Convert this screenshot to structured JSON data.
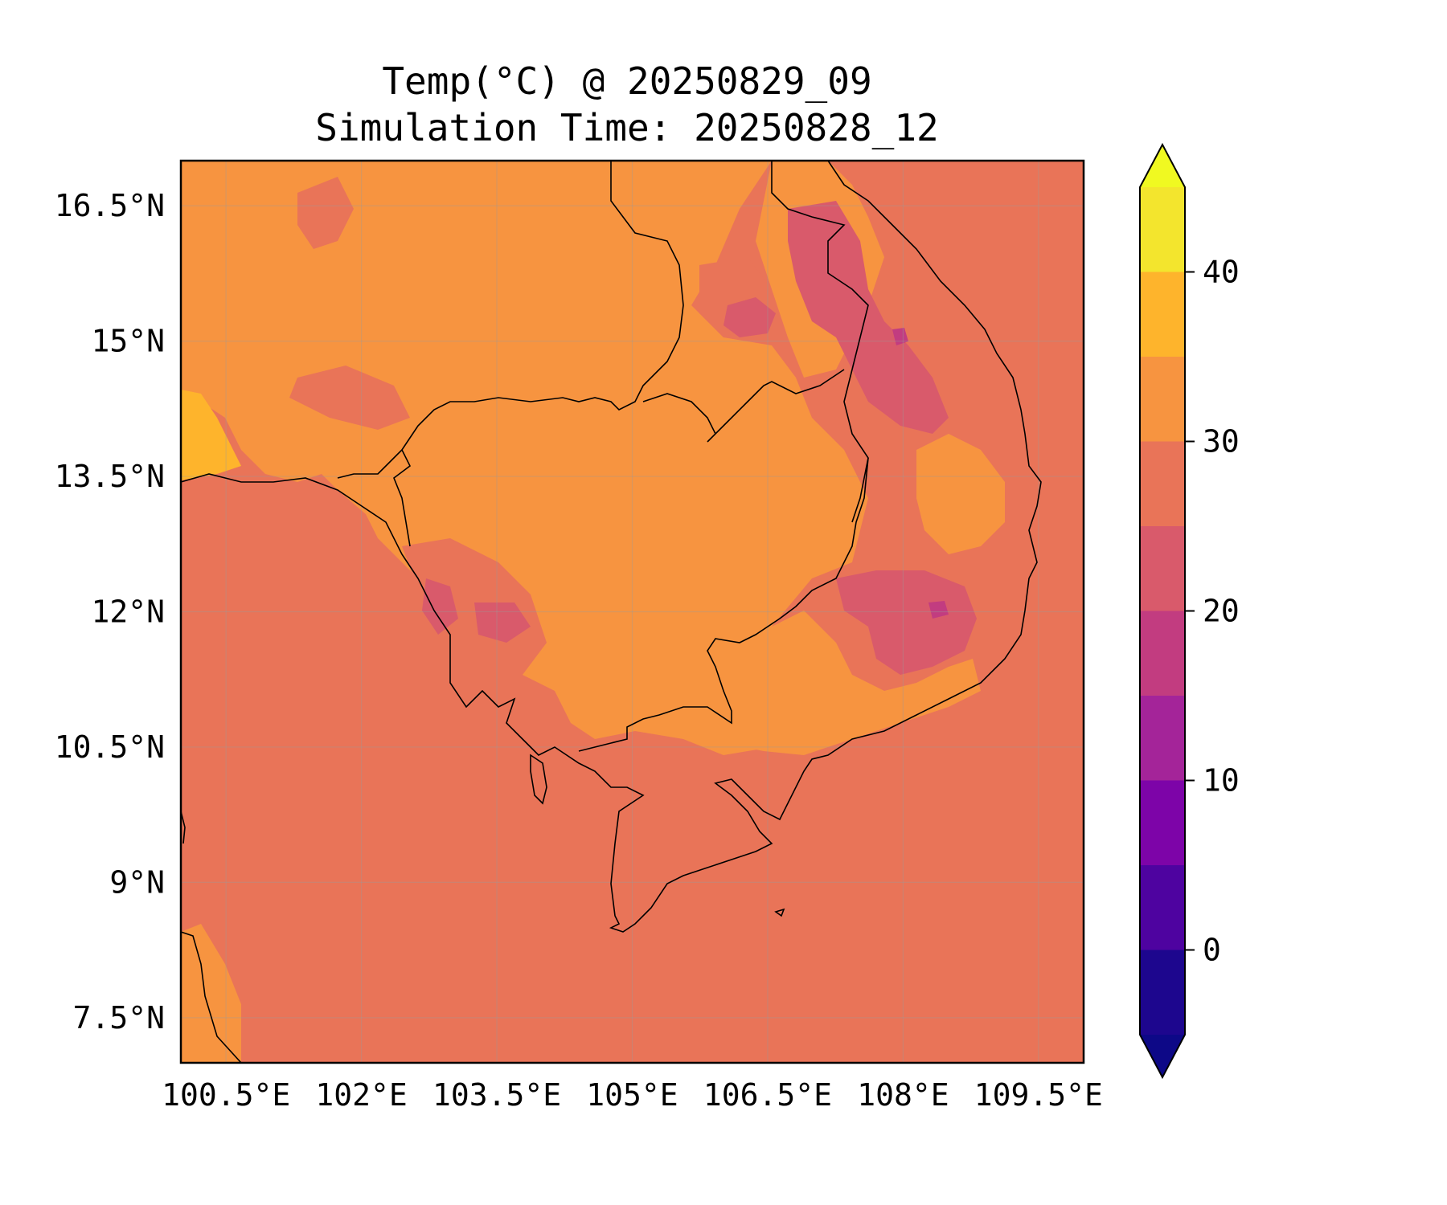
{
  "title": {
    "line1": "Temp(°C) @ 20250829_09",
    "line2": "Simulation Time: 20250828_12"
  },
  "map": {
    "lon_range": [
      100.0,
      110.0
    ],
    "lat_range": [
      7.0,
      17.0
    ],
    "background_color": "#e97458",
    "gridlines": true,
    "lat_ticks": [
      {
        "value": 16.5,
        "label": "16.5°N"
      },
      {
        "value": 15.0,
        "label": "15°N"
      },
      {
        "value": 13.5,
        "label": "13.5°N"
      },
      {
        "value": 12.0,
        "label": "12°N"
      },
      {
        "value": 10.5,
        "label": "10.5°N"
      },
      {
        "value": 9.0,
        "label": "9°N"
      },
      {
        "value": 7.5,
        "label": "7.5°N"
      }
    ],
    "lon_ticks": [
      {
        "value": 100.5,
        "label": "100.5°E"
      },
      {
        "value": 102.0,
        "label": "102°E"
      },
      {
        "value": 103.5,
        "label": "103.5°E"
      },
      {
        "value": 105.0,
        "label": "105°E"
      },
      {
        "value": 106.5,
        "label": "106.5°E"
      },
      {
        "value": 108.0,
        "label": "108°E"
      },
      {
        "value": 109.5,
        "label": "109.5°E"
      }
    ]
  },
  "colorbar": {
    "min": -5,
    "max": 45,
    "levels": [
      -5,
      0,
      5,
      10,
      15,
      20,
      25,
      30,
      35,
      40,
      45
    ],
    "colors": [
      "#1d068e",
      "#4e03a0",
      "#7d04a8",
      "#a42499",
      "#c23c80",
      "#d95a6b",
      "#e97458",
      "#f79440",
      "#feb42c",
      "#f3e52d"
    ],
    "under_color": "#0d0887",
    "over_color": "#f0f921",
    "ticks": [
      {
        "value": 0,
        "label": "0"
      },
      {
        "value": 10,
        "label": "10"
      },
      {
        "value": 20,
        "label": "20"
      },
      {
        "value": 30,
        "label": "30"
      },
      {
        "value": 40,
        "label": "40"
      }
    ],
    "extend": "both"
  }
}
